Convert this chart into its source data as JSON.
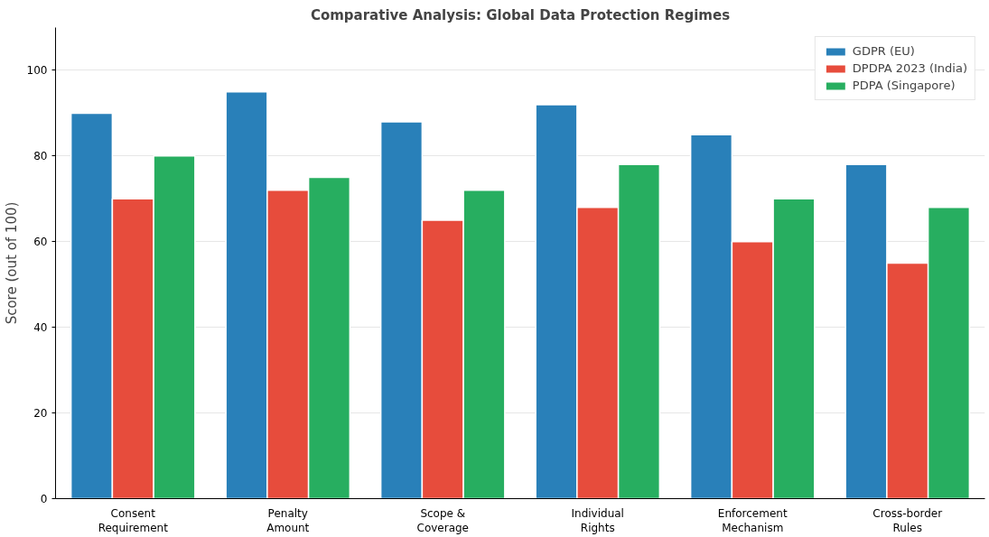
{
  "chart_data": {
    "type": "bar",
    "title": "Comparative Analysis: Global Data Protection Regimes",
    "ylabel": "Score (out of 100)",
    "categories": [
      "Consent\nRequirement",
      "Penalty\nAmount",
      "Scope &\nCoverage",
      "Individual\nRights",
      "Enforcement\nMechanism",
      "Cross-border\nRules"
    ],
    "series": [
      {
        "name": "GDPR (EU)",
        "color": "#2980b9",
        "values": [
          90,
          95,
          88,
          92,
          85,
          78
        ]
      },
      {
        "name": "DPDPA 2023 (India)",
        "color": "#e74c3c",
        "values": [
          70,
          72,
          65,
          68,
          60,
          55
        ]
      },
      {
        "name": "PDPA (Singapore)",
        "color": "#27ae60",
        "values": [
          80,
          75,
          72,
          78,
          70,
          68
        ]
      }
    ],
    "ylim": [
      0,
      110
    ],
    "yticks": [
      0,
      20,
      40,
      60,
      80,
      100
    ],
    "grid": "y",
    "legend": "top right"
  }
}
